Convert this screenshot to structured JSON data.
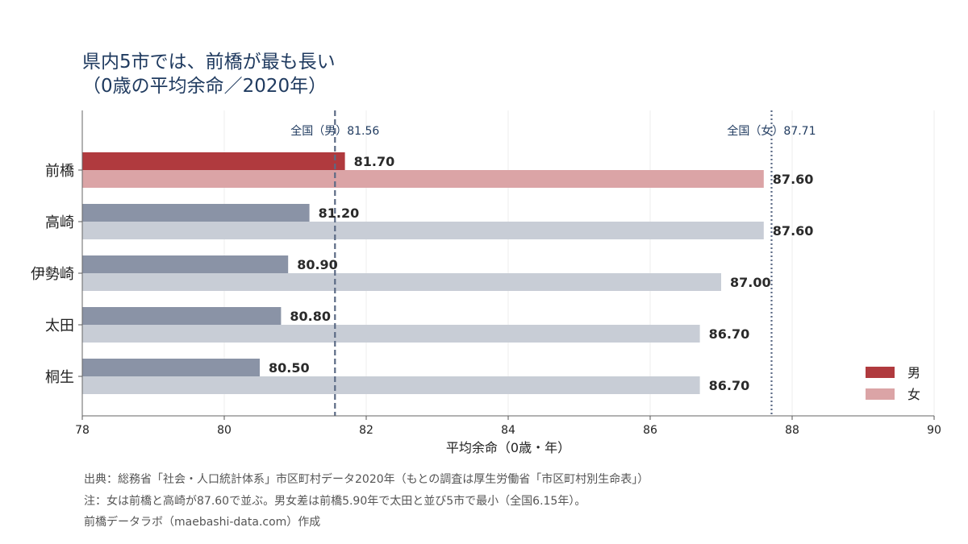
{
  "title": {
    "line1": "県内5市では、前橋が最も長い",
    "line2": "（0歳の平均余命／2020年）"
  },
  "chart_data": {
    "type": "bar",
    "orientation": "horizontal",
    "categories": [
      "前橋",
      "高崎",
      "伊勢崎",
      "太田",
      "桐生"
    ],
    "series": [
      {
        "name": "男",
        "values": [
          81.7,
          81.2,
          80.9,
          80.8,
          80.5
        ]
      },
      {
        "name": "女",
        "values": [
          87.6,
          87.6,
          87.0,
          86.7,
          86.7
        ]
      }
    ],
    "value_labels": {
      "male": [
        "81.70",
        "81.20",
        "80.90",
        "80.80",
        "80.50"
      ],
      "female": [
        "87.60",
        "87.60",
        "87.00",
        "86.70",
        "86.70"
      ]
    },
    "xlabel": "平均余命（0歳・年）",
    "xlim": [
      78,
      90
    ],
    "xticks": [
      78,
      80,
      82,
      84,
      86,
      88,
      90
    ],
    "grid": true,
    "legend_position": "bottom-right",
    "reference_lines": [
      {
        "label": "全国（男）81.56",
        "value": 81.56,
        "style": "dashed"
      },
      {
        "label": "全国（女）87.71",
        "value": 87.71,
        "style": "dotted"
      }
    ],
    "colors": {
      "highlight_male": "#b03a3e",
      "highlight_female": "#dba4a6",
      "male": "#8a93a6",
      "female": "#c8cdd6",
      "reference": "#5b6a85",
      "reference_label": "#1f3a5f"
    }
  },
  "notes": {
    "source": "出典：総務省「社会・人口統計体系」市区町村データ2020年（もとの調査は厚生労働省「市区町村別生命表」）",
    "note": "注：女は前橋と高崎が87.60で並ぶ。男女差は前橋5.90年で太田と並び5市で最小（全国6.15年）。",
    "credit": "前橋データラボ（maebashi-data.com）作成"
  }
}
